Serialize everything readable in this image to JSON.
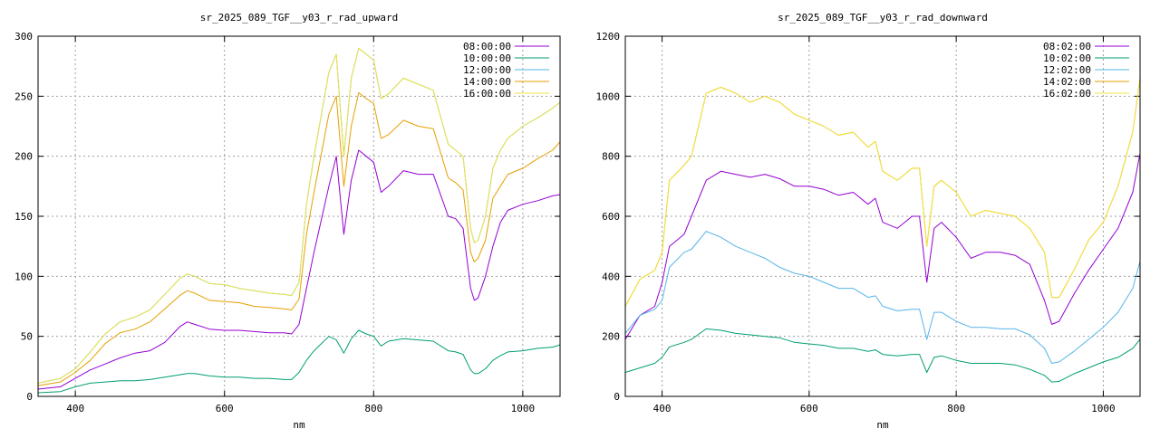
{
  "chart_data": [
    {
      "type": "line",
      "title": "sr_2025_089_TGF__y03_r_rad_upward",
      "xlabel": "nm",
      "ylabel": "",
      "xlim": [
        350,
        1050
      ],
      "ylim": [
        0,
        300
      ],
      "xticks": [
        400,
        600,
        800,
        1000
      ],
      "yticks": [
        0,
        50,
        100,
        150,
        200,
        250,
        300
      ],
      "grid": true,
      "legend_position": "top-right",
      "x": [
        350,
        380,
        400,
        420,
        440,
        460,
        480,
        500,
        520,
        540,
        550,
        560,
        580,
        600,
        620,
        640,
        660,
        680,
        690,
        700,
        710,
        720,
        740,
        750,
        760,
        770,
        780,
        790,
        800,
        810,
        820,
        840,
        860,
        880,
        900,
        910,
        920,
        930,
        935,
        940,
        950,
        960,
        970,
        980,
        1000,
        1020,
        1040,
        1050
      ],
      "series": [
        {
          "name": "08:00:00",
          "color": "#9400d3",
          "values": [
            6,
            8,
            15,
            22,
            27,
            32,
            36,
            38,
            45,
            58,
            62,
            60,
            56,
            55,
            55,
            54,
            53,
            53,
            52,
            60,
            90,
            120,
            175,
            200,
            135,
            180,
            205,
            200,
            195,
            170,
            175,
            188,
            185,
            185,
            150,
            148,
            140,
            90,
            80,
            82,
            100,
            125,
            145,
            155,
            160,
            163,
            167,
            168
          ]
        },
        {
          "name": "10:00:00",
          "color": "#009e73",
          "values": [
            3,
            4,
            8,
            11,
            12,
            13,
            13,
            14,
            16,
            18,
            19,
            19,
            17,
            16,
            16,
            15,
            15,
            14,
            14,
            20,
            30,
            38,
            50,
            47,
            36,
            48,
            55,
            52,
            50,
            42,
            46,
            48,
            47,
            46,
            38,
            37,
            35,
            22,
            19,
            19,
            23,
            30,
            34,
            37,
            38,
            40,
            41,
            43
          ]
        },
        {
          "name": "12:00:00",
          "color": "#56b4e9",
          "values": [
            11,
            15,
            23,
            37,
            52,
            62,
            66,
            72,
            85,
            98,
            102,
            100,
            94,
            93,
            90,
            88,
            86,
            85,
            84,
            95,
            160,
            200,
            270,
            285,
            200,
            265,
            290,
            285,
            280,
            248,
            252,
            265,
            260,
            255,
            210,
            205,
            200,
            140,
            128,
            130,
            150,
            190,
            205,
            215,
            225,
            232,
            240,
            245
          ]
        },
        {
          "name": "14:00:00",
          "color": "#e69f00",
          "values": [
            9,
            12,
            20,
            30,
            44,
            53,
            56,
            62,
            73,
            84,
            88,
            86,
            80,
            79,
            78,
            75,
            74,
            73,
            72,
            81,
            135,
            170,
            235,
            250,
            175,
            225,
            253,
            248,
            244,
            215,
            218,
            230,
            225,
            223,
            182,
            178,
            172,
            120,
            112,
            115,
            130,
            165,
            175,
            185,
            190,
            198,
            205,
            212
          ]
        },
        {
          "name": "16:00:00",
          "color": "#f0e442",
          "values": [
            11,
            15,
            23,
            37,
            52,
            62,
            66,
            72,
            85,
            98,
            102,
            100,
            94,
            93,
            90,
            88,
            86,
            85,
            84,
            95,
            160,
            200,
            270,
            285,
            200,
            265,
            290,
            285,
            280,
            248,
            252,
            265,
            260,
            255,
            210,
            205,
            200,
            140,
            128,
            130,
            150,
            190,
            205,
            215,
            225,
            232,
            240,
            245
          ]
        }
      ]
    },
    {
      "type": "line",
      "title": "sr_2025_089_TGF__y03_r_rad_downward",
      "xlabel": "nm",
      "ylabel": "",
      "xlim": [
        350,
        1050
      ],
      "ylim": [
        0,
        1200
      ],
      "xticks": [
        400,
        600,
        800,
        1000
      ],
      "yticks": [
        0,
        200,
        400,
        600,
        800,
        1000,
        1200
      ],
      "grid": true,
      "legend_position": "top-right",
      "x": [
        350,
        370,
        390,
        400,
        410,
        430,
        440,
        460,
        480,
        500,
        520,
        540,
        560,
        580,
        600,
        620,
        640,
        660,
        680,
        690,
        700,
        720,
        740,
        750,
        760,
        770,
        780,
        800,
        820,
        840,
        860,
        880,
        900,
        920,
        930,
        940,
        960,
        980,
        1000,
        1020,
        1040,
        1050
      ],
      "series": [
        {
          "name": "08:02:00",
          "color": "#9400d3",
          "values": [
            190,
            270,
            300,
            380,
            500,
            540,
            600,
            720,
            750,
            740,
            730,
            740,
            725,
            700,
            700,
            690,
            670,
            680,
            640,
            660,
            580,
            560,
            600,
            600,
            380,
            560,
            580,
            530,
            460,
            480,
            480,
            470,
            440,
            320,
            240,
            250,
            340,
            420,
            490,
            560,
            680,
            810
          ]
        },
        {
          "name": "10:02:00",
          "color": "#009e73",
          "values": [
            80,
            95,
            110,
            130,
            165,
            180,
            190,
            225,
            220,
            210,
            205,
            200,
            195,
            180,
            175,
            170,
            160,
            160,
            150,
            155,
            140,
            135,
            140,
            140,
            80,
            130,
            135,
            120,
            110,
            110,
            110,
            105,
            90,
            70,
            48,
            50,
            75,
            95,
            115,
            130,
            160,
            190
          ]
        },
        {
          "name": "12:02:00",
          "color": "#56b4e9",
          "values": [
            210,
            270,
            290,
            320,
            430,
            480,
            490,
            550,
            530,
            500,
            480,
            460,
            430,
            410,
            400,
            380,
            360,
            360,
            330,
            335,
            300,
            285,
            290,
            290,
            190,
            280,
            280,
            250,
            230,
            230,
            225,
            225,
            205,
            160,
            110,
            115,
            150,
            190,
            230,
            280,
            360,
            450
          ]
        },
        {
          "name": "14:02:00",
          "color": "#e69f00",
          "values": [
            300,
            390,
            420,
            480,
            720,
            770,
            800,
            1010,
            1030,
            1010,
            980,
            1000,
            980,
            940,
            920,
            900,
            870,
            880,
            830,
            850,
            750,
            720,
            760,
            760,
            500,
            700,
            720,
            680,
            600,
            620,
            610,
            600,
            560,
            480,
            330,
            330,
            420,
            520,
            580,
            700,
            880,
            1060
          ]
        },
        {
          "name": "16:02:00",
          "color": "#f0e442",
          "values": [
            300,
            390,
            420,
            480,
            720,
            770,
            800,
            1010,
            1030,
            1010,
            980,
            1000,
            980,
            940,
            920,
            900,
            870,
            880,
            830,
            850,
            750,
            720,
            760,
            760,
            500,
            700,
            720,
            680,
            600,
            620,
            610,
            600,
            560,
            480,
            330,
            330,
            420,
            520,
            580,
            700,
            880,
            1060
          ]
        }
      ]
    }
  ]
}
